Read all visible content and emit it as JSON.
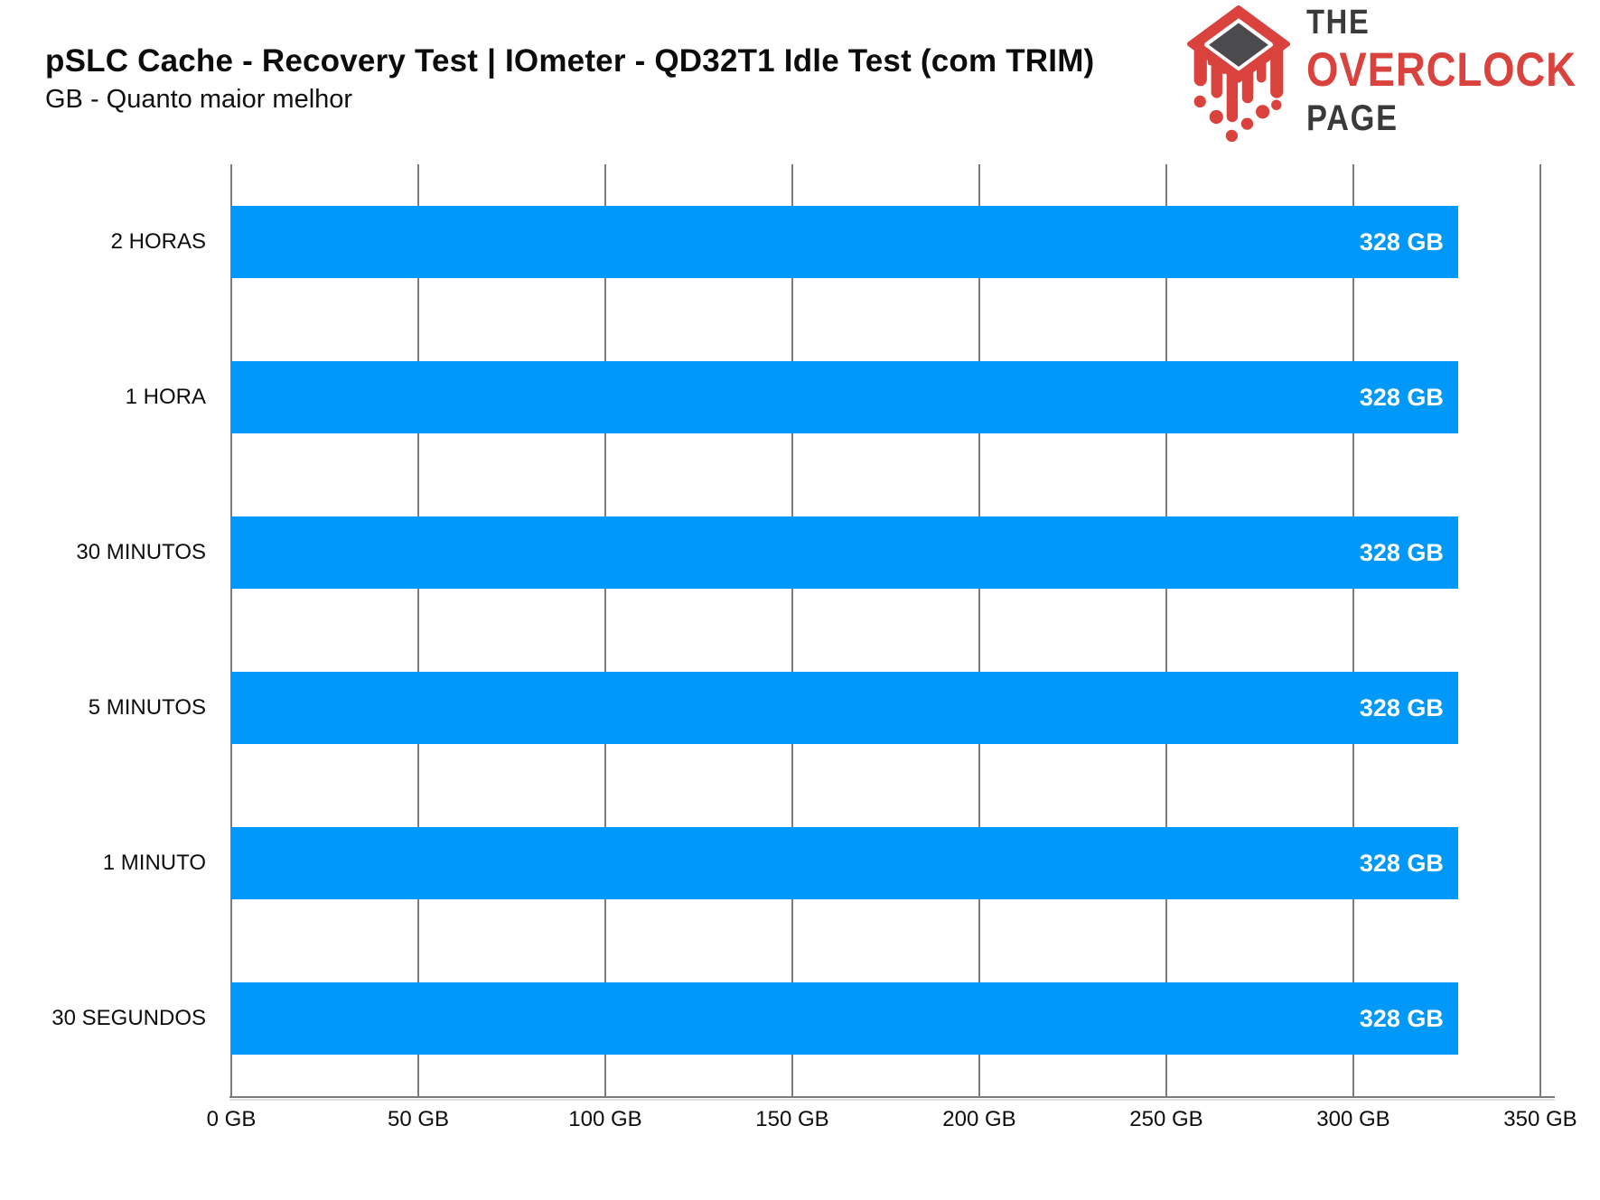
{
  "header": {
    "title": "pSLC Cache - Recovery Test | IOmeter - QD32T1 Idle Test (com TRIM)",
    "subtitle": "GB - Quanto maior melhor"
  },
  "logo": {
    "line1": "THE",
    "line2": "OVERCLOCK",
    "line3": "PAGE",
    "red": "#d9423d",
    "dark": "#3a3a3c"
  },
  "chart_data": {
    "type": "bar",
    "orientation": "horizontal",
    "title": "pSLC Cache - Recovery Test | IOmeter - QD32T1 Idle Test (com TRIM)",
    "subtitle": "GB - Quanto maior melhor",
    "categories": [
      "2 HORAS",
      "1 HORA",
      "30 MINUTOS",
      "5 MINUTOS",
      "1 MINUTO",
      "30 SEGUNDOS"
    ],
    "values": [
      328,
      328,
      328,
      328,
      328,
      328
    ],
    "value_labels": [
      "328 GB",
      "328 GB",
      "328 GB",
      "328 GB",
      "328 GB",
      "328 GB"
    ],
    "unit": "GB",
    "xlabel": "",
    "ylabel": "",
    "xlim": [
      0,
      350
    ],
    "x_ticks": [
      0,
      50,
      100,
      150,
      200,
      250,
      300,
      350
    ],
    "x_tick_labels": [
      "0 GB",
      "50 GB",
      "100 GB",
      "150 GB",
      "200 GB",
      "250 GB",
      "300 GB",
      "350 GB"
    ],
    "bar_color": "#0099fa",
    "value_label_color": "#ffffff",
    "gridline_color": "#7b7b7b",
    "grid": true,
    "legend": false
  }
}
